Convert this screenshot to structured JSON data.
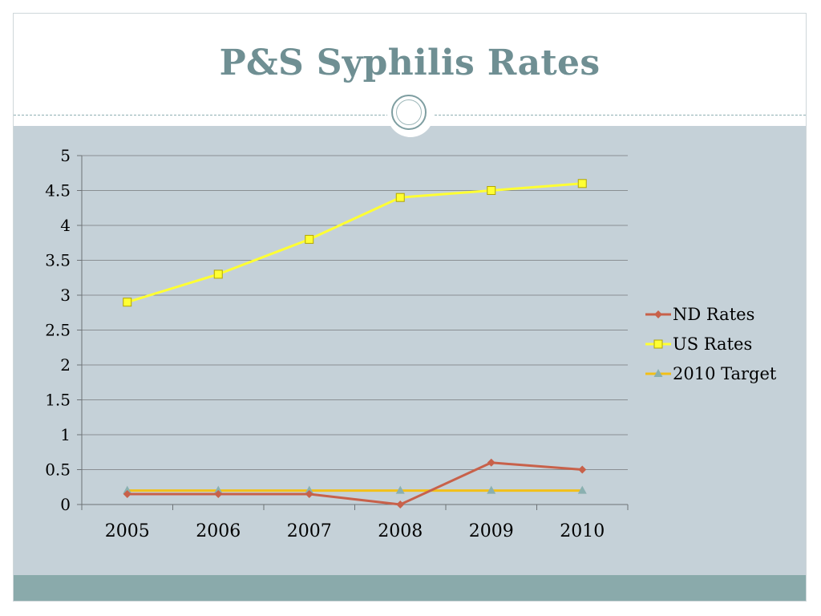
{
  "slide": {
    "title": "P&S Syphilis Rates",
    "colors": {
      "title": "#6f8f93",
      "content_bg": "#c5d1d8",
      "footer_bg": "#8aaaab"
    }
  },
  "chart_data": {
    "type": "line",
    "title": "",
    "xlabel": "",
    "ylabel": "",
    "categories": [
      "2005",
      "2006",
      "2007",
      "2008",
      "2009",
      "2010"
    ],
    "ylim": [
      0,
      5
    ],
    "yticks": [
      "0",
      "0.5",
      "1",
      "1.5",
      "2",
      "2.5",
      "3",
      "3.5",
      "4",
      "4.5",
      "5"
    ],
    "grid": true,
    "legend_position": "right",
    "series": [
      {
        "name": "ND Rates",
        "values": [
          0.15,
          0.15,
          0.15,
          0.0,
          0.6,
          0.5
        ],
        "color": "#c8614a",
        "marker": "diamond"
      },
      {
        "name": "US Rates",
        "values": [
          2.9,
          3.3,
          3.8,
          4.4,
          4.5,
          4.6
        ],
        "color": "#ffff33",
        "marker": "square"
      },
      {
        "name": "2010 Target",
        "values": [
          0.2,
          0.2,
          0.2,
          0.2,
          0.2,
          0.2
        ],
        "color": "#f2c018",
        "marker": "triangle"
      }
    ]
  }
}
